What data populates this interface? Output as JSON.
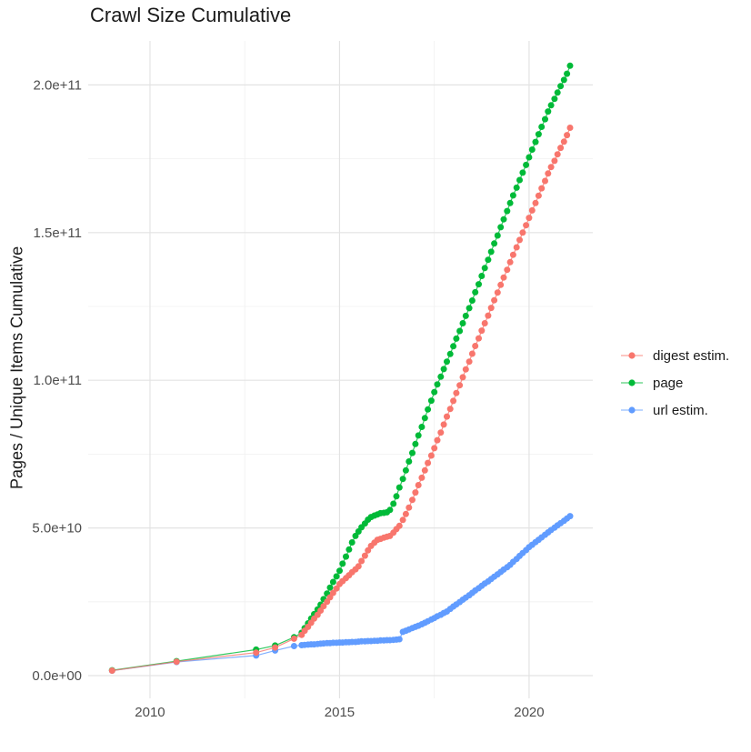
{
  "chart_data": {
    "type": "line",
    "title": "Crawl Size Cumulative",
    "xlabel": "",
    "ylabel": "Pages / Unique Items Cumulative",
    "y_unit_note": "values in billions (1e9) of pages / unique items",
    "grid": true,
    "legend_position": "right",
    "xlim": [
      2008.37,
      2021.68
    ],
    "ylim": [
      -7.7,
      214.9
    ],
    "x_ticks": [
      {
        "label": "2010",
        "value": 2010
      },
      {
        "label": "2015",
        "value": 2015
      },
      {
        "label": "2020",
        "value": 2020
      }
    ],
    "y_ticks": [
      {
        "label": "0.0e+00",
        "value": 0
      },
      {
        "label": "5.0e+10",
        "value": 50
      },
      {
        "label": "1.0e+11",
        "value": 100
      },
      {
        "label": "1.5e+11",
        "value": 150
      },
      {
        "label": "2.0e+11",
        "value": 200
      }
    ],
    "x_minor_gridlines": [
      2012.5,
      2017.5
    ],
    "y_minor_gridlines": [
      25,
      75,
      125,
      175
    ],
    "legend": [
      {
        "label": "digest estim.",
        "color": "#F8766D"
      },
      {
        "label": "page",
        "color": "#00BA38"
      },
      {
        "label": "url estim.",
        "color": "#619CFF"
      }
    ],
    "draw_order": [
      2,
      1,
      0
    ],
    "series": [
      {
        "name": "digest estim.",
        "color": "#F8766D",
        "points": [
          [
            2009.0,
            1.7
          ],
          [
            2010.7,
            4.7
          ],
          [
            2012.8,
            7.8
          ],
          [
            2013.3,
            9.5
          ],
          [
            2013.8,
            12.5
          ],
          [
            2014.0,
            13.8
          ],
          [
            2014.08,
            15.2
          ],
          [
            2014.17,
            16.5
          ],
          [
            2014.25,
            17.9
          ],
          [
            2014.33,
            19.3
          ],
          [
            2014.42,
            20.6
          ],
          [
            2014.5,
            22.0
          ],
          [
            2014.58,
            23.5
          ],
          [
            2014.67,
            25.0
          ],
          [
            2014.75,
            26.5
          ],
          [
            2014.83,
            28.0
          ],
          [
            2014.92,
            29.5
          ],
          [
            2015.0,
            31.0
          ],
          [
            2015.08,
            32.0
          ],
          [
            2015.17,
            33.0
          ],
          [
            2015.25,
            34.0
          ],
          [
            2015.33,
            35.0
          ],
          [
            2015.42,
            36.0
          ],
          [
            2015.5,
            37.0
          ],
          [
            2015.58,
            38.8
          ],
          [
            2015.67,
            40.6
          ],
          [
            2015.75,
            42.4
          ],
          [
            2015.83,
            43.9
          ],
          [
            2015.92,
            45.0
          ],
          [
            2016.0,
            46.0
          ],
          [
            2016.08,
            46.3
          ],
          [
            2016.17,
            46.7
          ],
          [
            2016.25,
            47.0
          ],
          [
            2016.33,
            47.3
          ],
          [
            2016.42,
            48.4
          ],
          [
            2016.5,
            49.6
          ],
          [
            2016.58,
            50.7
          ],
          [
            2016.67,
            52.7
          ],
          [
            2016.75,
            54.7
          ],
          [
            2016.83,
            56.9
          ],
          [
            2016.92,
            59.5
          ],
          [
            2017.0,
            62.0
          ],
          [
            2017.08,
            64.5
          ],
          [
            2017.17,
            67.0
          ],
          [
            2017.25,
            69.5
          ],
          [
            2017.33,
            72.0
          ],
          [
            2017.42,
            74.5
          ],
          [
            2017.5,
            77.0
          ],
          [
            2017.58,
            79.7
          ],
          [
            2017.67,
            82.3
          ],
          [
            2017.75,
            85.0
          ],
          [
            2017.83,
            87.7
          ],
          [
            2017.92,
            90.3
          ],
          [
            2018.0,
            93.0
          ],
          [
            2018.08,
            95.7
          ],
          [
            2018.17,
            98.3
          ],
          [
            2018.25,
            101.0
          ],
          [
            2018.33,
            103.7
          ],
          [
            2018.42,
            106.3
          ],
          [
            2018.5,
            109.0
          ],
          [
            2018.58,
            111.6
          ],
          [
            2018.67,
            114.2
          ],
          [
            2018.75,
            116.8
          ],
          [
            2018.83,
            119.3
          ],
          [
            2018.92,
            121.9
          ],
          [
            2019.0,
            124.5
          ],
          [
            2019.08,
            127.1
          ],
          [
            2019.17,
            129.7
          ],
          [
            2019.25,
            132.3
          ],
          [
            2019.33,
            134.8
          ],
          [
            2019.42,
            137.4
          ],
          [
            2019.5,
            140.0
          ],
          [
            2019.58,
            142.5
          ],
          [
            2019.67,
            145.0
          ],
          [
            2019.75,
            147.5
          ],
          [
            2019.83,
            150.0
          ],
          [
            2019.92,
            152.5
          ],
          [
            2020.0,
            155.0
          ],
          [
            2020.08,
            157.5
          ],
          [
            2020.17,
            160.0
          ],
          [
            2020.25,
            162.5
          ],
          [
            2020.33,
            165.0
          ],
          [
            2020.42,
            167.5
          ],
          [
            2020.5,
            170.0
          ],
          [
            2020.58,
            172.2
          ],
          [
            2020.67,
            174.3
          ],
          [
            2020.75,
            176.5
          ],
          [
            2020.83,
            178.7
          ],
          [
            2020.92,
            180.8
          ],
          [
            2021.0,
            183.0
          ],
          [
            2021.08,
            185.5
          ]
        ]
      },
      {
        "name": "page",
        "color": "#00BA38",
        "points": [
          [
            2009.0,
            1.8
          ],
          [
            2010.7,
            4.9
          ],
          [
            2012.8,
            8.8
          ],
          [
            2013.3,
            10.2
          ],
          [
            2013.8,
            13.0
          ],
          [
            2014.0,
            14.5
          ],
          [
            2014.08,
            16.1
          ],
          [
            2014.17,
            17.7
          ],
          [
            2014.25,
            19.3
          ],
          [
            2014.33,
            20.8
          ],
          [
            2014.42,
            22.4
          ],
          [
            2014.5,
            24.0
          ],
          [
            2014.58,
            25.9
          ],
          [
            2014.67,
            27.8
          ],
          [
            2014.75,
            29.8
          ],
          [
            2014.83,
            31.7
          ],
          [
            2014.92,
            33.6
          ],
          [
            2015.0,
            35.5
          ],
          [
            2015.08,
            37.9
          ],
          [
            2015.17,
            40.3
          ],
          [
            2015.25,
            42.7
          ],
          [
            2015.33,
            45.1
          ],
          [
            2015.42,
            47.3
          ],
          [
            2015.5,
            48.8
          ],
          [
            2015.58,
            50.2
          ],
          [
            2015.67,
            51.5
          ],
          [
            2015.75,
            52.8
          ],
          [
            2015.83,
            53.7
          ],
          [
            2015.92,
            54.2
          ],
          [
            2016.0,
            54.6
          ],
          [
            2016.08,
            55.0
          ],
          [
            2016.17,
            55.1
          ],
          [
            2016.25,
            55.3
          ],
          [
            2016.33,
            56.1
          ],
          [
            2016.42,
            58.2
          ],
          [
            2016.5,
            60.7
          ],
          [
            2016.58,
            63.7
          ],
          [
            2016.67,
            66.6
          ],
          [
            2016.75,
            69.5
          ],
          [
            2016.83,
            72.5
          ],
          [
            2016.92,
            75.4
          ],
          [
            2017.0,
            78.4
          ],
          [
            2017.08,
            81.3
          ],
          [
            2017.17,
            84.2
          ],
          [
            2017.25,
            87.2
          ],
          [
            2017.33,
            90.1
          ],
          [
            2017.42,
            93.1
          ],
          [
            2017.5,
            96.0
          ],
          [
            2017.58,
            98.6
          ],
          [
            2017.67,
            101.2
          ],
          [
            2017.75,
            103.8
          ],
          [
            2017.83,
            106.3
          ],
          [
            2017.92,
            108.9
          ],
          [
            2018.0,
            111.5
          ],
          [
            2018.08,
            114.1
          ],
          [
            2018.17,
            116.7
          ],
          [
            2018.25,
            119.3
          ],
          [
            2018.33,
            121.8
          ],
          [
            2018.42,
            124.4
          ],
          [
            2018.5,
            127.0
          ],
          [
            2018.58,
            129.8
          ],
          [
            2018.67,
            132.5
          ],
          [
            2018.75,
            135.3
          ],
          [
            2018.83,
            138.0
          ],
          [
            2018.92,
            140.8
          ],
          [
            2019.0,
            143.5
          ],
          [
            2019.08,
            146.3
          ],
          [
            2019.17,
            149.0
          ],
          [
            2019.25,
            151.8
          ],
          [
            2019.33,
            154.5
          ],
          [
            2019.42,
            157.3
          ],
          [
            2019.5,
            160.0
          ],
          [
            2019.58,
            162.6
          ],
          [
            2019.67,
            165.2
          ],
          [
            2019.75,
            167.8
          ],
          [
            2019.83,
            170.3
          ],
          [
            2019.92,
            172.9
          ],
          [
            2020.0,
            175.5
          ],
          [
            2020.08,
            178.1
          ],
          [
            2020.17,
            180.7
          ],
          [
            2020.25,
            183.3
          ],
          [
            2020.33,
            185.8
          ],
          [
            2020.42,
            188.4
          ],
          [
            2020.5,
            191.0
          ],
          [
            2020.58,
            193.1
          ],
          [
            2020.67,
            195.3
          ],
          [
            2020.75,
            197.4
          ],
          [
            2020.83,
            199.6
          ],
          [
            2020.92,
            201.7
          ],
          [
            2021.0,
            203.8
          ],
          [
            2021.08,
            206.5
          ]
        ]
      },
      {
        "name": "url estim.",
        "color": "#619CFF",
        "points": [
          [
            2009.0,
            1.7
          ],
          [
            2010.7,
            4.6
          ],
          [
            2012.8,
            6.8
          ],
          [
            2013.3,
            8.5
          ],
          [
            2013.8,
            10.0
          ],
          [
            2014.0,
            10.3
          ],
          [
            2014.08,
            10.4
          ],
          [
            2014.17,
            10.5
          ],
          [
            2014.25,
            10.6
          ],
          [
            2014.33,
            10.6
          ],
          [
            2014.42,
            10.7
          ],
          [
            2014.5,
            10.8
          ],
          [
            2014.58,
            10.9
          ],
          [
            2014.67,
            11.0
          ],
          [
            2014.75,
            11.0
          ],
          [
            2014.83,
            11.1
          ],
          [
            2014.92,
            11.1
          ],
          [
            2015.0,
            11.2
          ],
          [
            2015.08,
            11.2
          ],
          [
            2015.17,
            11.3
          ],
          [
            2015.25,
            11.3
          ],
          [
            2015.33,
            11.4
          ],
          [
            2015.42,
            11.4
          ],
          [
            2015.5,
            11.5
          ],
          [
            2015.58,
            11.6
          ],
          [
            2015.67,
            11.6
          ],
          [
            2015.75,
            11.7
          ],
          [
            2015.83,
            11.7
          ],
          [
            2015.92,
            11.8
          ],
          [
            2016.0,
            11.8
          ],
          [
            2016.08,
            11.9
          ],
          [
            2016.17,
            11.9
          ],
          [
            2016.25,
            12.0
          ],
          [
            2016.33,
            12.0
          ],
          [
            2016.42,
            12.1
          ],
          [
            2016.5,
            12.2
          ],
          [
            2016.58,
            12.3
          ],
          [
            2016.67,
            14.8
          ],
          [
            2016.75,
            15.2
          ],
          [
            2016.83,
            15.6
          ],
          [
            2016.92,
            16.1
          ],
          [
            2017.0,
            16.5
          ],
          [
            2017.08,
            16.9
          ],
          [
            2017.17,
            17.4
          ],
          [
            2017.25,
            17.9
          ],
          [
            2017.33,
            18.4
          ],
          [
            2017.42,
            19.0
          ],
          [
            2017.5,
            19.5
          ],
          [
            2017.58,
            20.1
          ],
          [
            2017.67,
            20.6
          ],
          [
            2017.75,
            21.2
          ],
          [
            2017.83,
            21.7
          ],
          [
            2017.92,
            22.6
          ],
          [
            2018.0,
            23.4
          ],
          [
            2018.08,
            24.1
          ],
          [
            2018.17,
            24.9
          ],
          [
            2018.25,
            25.7
          ],
          [
            2018.33,
            26.4
          ],
          [
            2018.42,
            27.2
          ],
          [
            2018.5,
            28.0
          ],
          [
            2018.58,
            28.8
          ],
          [
            2018.67,
            29.6
          ],
          [
            2018.75,
            30.4
          ],
          [
            2018.83,
            31.2
          ],
          [
            2018.92,
            31.9
          ],
          [
            2019.0,
            32.7
          ],
          [
            2019.08,
            33.5
          ],
          [
            2019.17,
            34.3
          ],
          [
            2019.25,
            35.1
          ],
          [
            2019.33,
            35.9
          ],
          [
            2019.42,
            36.7
          ],
          [
            2019.5,
            37.5
          ],
          [
            2019.58,
            38.5
          ],
          [
            2019.67,
            39.5
          ],
          [
            2019.75,
            40.5
          ],
          [
            2019.83,
            41.5
          ],
          [
            2019.92,
            42.5
          ],
          [
            2020.0,
            43.5
          ],
          [
            2020.08,
            44.3
          ],
          [
            2020.17,
            45.2
          ],
          [
            2020.25,
            46.0
          ],
          [
            2020.33,
            46.8
          ],
          [
            2020.42,
            47.7
          ],
          [
            2020.5,
            48.5
          ],
          [
            2020.58,
            49.3
          ],
          [
            2020.67,
            50.1
          ],
          [
            2020.75,
            50.9
          ],
          [
            2020.83,
            51.6
          ],
          [
            2020.92,
            52.4
          ],
          [
            2021.0,
            53.2
          ],
          [
            2021.08,
            54.0
          ]
        ]
      }
    ]
  }
}
